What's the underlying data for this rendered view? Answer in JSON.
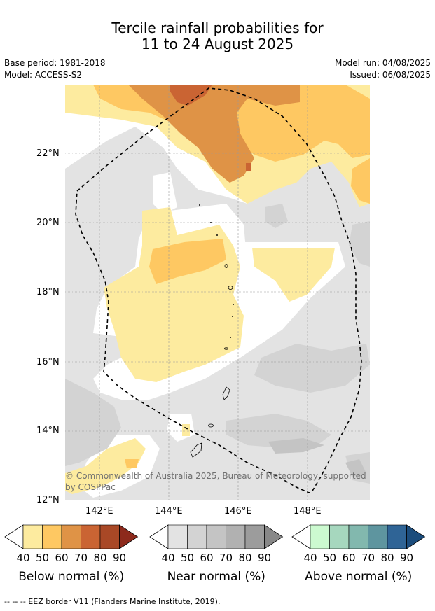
{
  "title_line1": "Tercile rainfall probabilities for",
  "title_line2": "11 to 24 August 2025",
  "base_period": "Base period: 1981-2018",
  "model": "Model: ACCESS-S2",
  "model_run": "Model run: 04/08/2025",
  "issued": "Issued: 06/08/2025",
  "lat_labels": [
    "22°N",
    "20°N",
    "18°N",
    "16°N",
    "14°N",
    "12°N"
  ],
  "lon_labels": [
    "142°E",
    "144°E",
    "146°E",
    "148°E"
  ],
  "copyright_line1": "© Commonwealth of Australia 2025, Bureau of Meteorology, supported",
  "copyright_line2": "by COSPPac",
  "colorbars": [
    {
      "label": "Below normal (%)",
      "ticks": [
        "40",
        "50",
        "60",
        "70",
        "80",
        "90"
      ],
      "colors": [
        "#fdeb9f",
        "#fec862",
        "#df9346",
        "#ca6433",
        "#a94826",
        "#8d2a1c"
      ]
    },
    {
      "label": "Near normal (%)",
      "ticks": [
        "40",
        "50",
        "60",
        "70",
        "80",
        "90"
      ],
      "colors": [
        "#e3e3e3",
        "#d3d3d3",
        "#c4c4c4",
        "#b1b1b1",
        "#9c9c9c",
        "#888888"
      ]
    },
    {
      "label": "Above normal (%)",
      "ticks": [
        "40",
        "50",
        "60",
        "70",
        "80",
        "90"
      ],
      "colors": [
        "#ccfad0",
        "#a6d7be",
        "#82b8ae",
        "#5e959f",
        "#2f6496",
        "#1b4c7c"
      ]
    }
  ],
  "footnote": "--  --  -- EEZ border V11 (Flanders Marine Institute, 2019)."
}
